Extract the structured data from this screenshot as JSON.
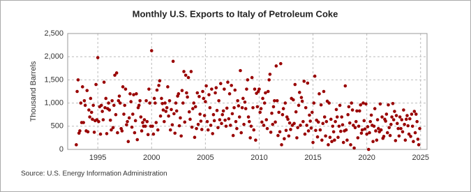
{
  "chart_data": {
    "type": "scatter",
    "title": "Monthly U.S. Exports to Italy of Petroleum Coke",
    "y_label": "Thousand Barrels",
    "source": "Source: U.S. Energy Information Administration",
    "xlim": [
      1992.2,
      2025.6
    ],
    "xticks": [
      1995,
      2000,
      2005,
      2010,
      2015,
      2020,
      2025
    ],
    "ylim": [
      0,
      2500
    ],
    "yticks": [
      0,
      500,
      {
        "value": 1000,
        "label": "1,000"
      },
      {
        "value": 1500,
        "label": "1,500"
      },
      {
        "value": 2000,
        "label": "2,000"
      },
      {
        "value": 2500,
        "label": "2,500"
      }
    ],
    "grid": true,
    "color": "#990000",
    "x": [
      1993,
      1993.08,
      1993.17,
      1993.25,
      1993.33,
      1993.42,
      1993.5,
      1993.58,
      1993.67,
      1993.75,
      1993.83,
      1993.92,
      1994,
      1994.08,
      1994.17,
      1994.25,
      1994.33,
      1994.42,
      1994.5,
      1994.58,
      1994.67,
      1994.75,
      1994.83,
      1994.92,
      1995,
      1995.08,
      1995.17,
      1995.25,
      1995.33,
      1995.42,
      1995.5,
      1995.58,
      1995.67,
      1995.75,
      1995.83,
      1995.92,
      1996,
      1996.08,
      1996.17,
      1996.25,
      1996.33,
      1996.42,
      1996.5,
      1996.58,
      1996.67,
      1996.75,
      1996.83,
      1996.92,
      1997,
      1997.08,
      1997.17,
      1997.25,
      1997.33,
      1997.42,
      1997.5,
      1997.58,
      1997.67,
      1997.75,
      1997.83,
      1997.92,
      1998,
      1998.08,
      1998.17,
      1998.25,
      1998.33,
      1998.42,
      1998.5,
      1998.58,
      1998.67,
      1998.75,
      1998.83,
      1998.92,
      1999,
      1999.08,
      1999.17,
      1999.25,
      1999.33,
      1999.42,
      1999.5,
      1999.58,
      1999.67,
      1999.75,
      1999.83,
      1999.92,
      2000,
      2000.08,
      2000.17,
      2000.25,
      2000.33,
      2000.42,
      2000.5,
      2000.58,
      2000.67,
      2000.75,
      2000.83,
      2000.92,
      2001,
      2001.08,
      2001.17,
      2001.25,
      2001.33,
      2001.42,
      2001.5,
      2001.58,
      2001.67,
      2001.75,
      2001.83,
      2001.92,
      2002,
      2002.08,
      2002.17,
      2002.25,
      2002.33,
      2002.42,
      2002.5,
      2002.58,
      2002.67,
      2002.75,
      2002.83,
      2002.92,
      2003,
      2003.08,
      2003.17,
      2003.25,
      2003.33,
      2003.42,
      2003.5,
      2003.58,
      2003.67,
      2003.75,
      2003.83,
      2003.92,
      2004,
      2004.08,
      2004.17,
      2004.25,
      2004.33,
      2004.42,
      2004.5,
      2004.58,
      2004.67,
      2004.75,
      2004.83,
      2004.92,
      2005,
      2005.08,
      2005.17,
      2005.25,
      2005.33,
      2005.42,
      2005.5,
      2005.58,
      2005.67,
      2005.75,
      2005.83,
      2005.92,
      2006,
      2006.08,
      2006.17,
      2006.25,
      2006.33,
      2006.42,
      2006.5,
      2006.58,
      2006.67,
      2006.75,
      2006.83,
      2006.92,
      2007,
      2007.08,
      2007.17,
      2007.25,
      2007.33,
      2007.42,
      2007.5,
      2007.58,
      2007.67,
      2007.75,
      2007.83,
      2007.92,
      2008,
      2008.08,
      2008.17,
      2008.25,
      2008.33,
      2008.42,
      2008.5,
      2008.58,
      2008.67,
      2008.75,
      2008.83,
      2008.92,
      2009,
      2009.08,
      2009.17,
      2009.25,
      2009.33,
      2009.42,
      2009.5,
      2009.58,
      2009.67,
      2009.75,
      2009.83,
      2009.92,
      2010,
      2010.08,
      2010.17,
      2010.25,
      2010.33,
      2010.42,
      2010.5,
      2010.58,
      2010.67,
      2010.75,
      2010.83,
      2010.92,
      2011,
      2011.08,
      2011.17,
      2011.25,
      2011.33,
      2011.42,
      2011.5,
      2011.58,
      2011.67,
      2011.75,
      2011.83,
      2011.92,
      2012,
      2012.08,
      2012.17,
      2012.25,
      2012.33,
      2012.42,
      2012.5,
      2012.58,
      2012.67,
      2012.75,
      2012.83,
      2012.92,
      2013,
      2013.08,
      2013.17,
      2013.25,
      2013.33,
      2013.42,
      2013.5,
      2013.58,
      2013.67,
      2013.75,
      2013.83,
      2013.92,
      2014,
      2014.08,
      2014.17,
      2014.25,
      2014.33,
      2014.42,
      2014.5,
      2014.58,
      2014.67,
      2014.75,
      2014.83,
      2014.92,
      2015,
      2015.08,
      2015.17,
      2015.25,
      2015.33,
      2015.42,
      2015.5,
      2015.58,
      2015.67,
      2015.75,
      2015.83,
      2015.92,
      2016,
      2016.08,
      2016.17,
      2016.25,
      2016.33,
      2016.42,
      2016.5,
      2016.58,
      2016.67,
      2016.75,
      2016.83,
      2016.92,
      2017,
      2017.08,
      2017.17,
      2017.25,
      2017.33,
      2017.42,
      2017.5,
      2017.58,
      2017.67,
      2017.75,
      2017.83,
      2017.92,
      2018,
      2018.08,
      2018.17,
      2018.25,
      2018.33,
      2018.42,
      2018.5,
      2018.58,
      2018.67,
      2018.75,
      2018.83,
      2018.92,
      2019,
      2019.08,
      2019.17,
      2019.25,
      2019.33,
      2019.42,
      2019.5,
      2019.58,
      2019.67,
      2019.75,
      2019.83,
      2019.92,
      2020,
      2020.08,
      2020.17,
      2020.25,
      2020.33,
      2020.42,
      2020.5,
      2020.58,
      2020.67,
      2020.75,
      2020.83,
      2020.92,
      2021,
      2021.08,
      2021.17,
      2021.25,
      2021.33,
      2021.42,
      2021.5,
      2021.58,
      2021.67,
      2021.75,
      2021.83,
      2021.92,
      2022,
      2022.08,
      2022.17,
      2022.25,
      2022.33,
      2022.42,
      2022.5,
      2022.58,
      2022.67,
      2022.75,
      2022.83,
      2022.92,
      2023,
      2023.08,
      2023.17,
      2023.25,
      2023.33,
      2023.42,
      2023.5,
      2023.58,
      2023.67,
      2023.75,
      2023.83,
      2023.92,
      2024,
      2024.08,
      2024.17,
      2024.25,
      2024.33,
      2024.42,
      2024.5,
      2024.58,
      2024.67,
      2024.75,
      2024.83,
      2024.92
    ],
    "values": [
      100,
      1250,
      1500,
      350,
      400,
      1000,
      580,
      1350,
      580,
      1050,
      950,
      400,
      1270,
      380,
      850,
      700,
      1100,
      800,
      650,
      950,
      370,
      620,
      1400,
      640,
      1980,
      600,
      920,
      330,
      950,
      820,
      640,
      1450,
      900,
      1100,
      340,
      880,
      1000,
      850,
      630,
      420,
      1050,
      470,
      950,
      1600,
      750,
      1650,
      360,
      1050,
      1150,
      1000,
      450,
      400,
      1350,
      760,
      950,
      1300,
      530,
      600,
      170,
      680,
      1200,
      1030,
      480,
      760,
      1180,
      360,
      620,
      1200,
      210,
      900,
      950,
      1050,
      700,
      400,
      580,
      500,
      640,
      500,
      1050,
      600,
      320,
      1300,
      1000,
      500,
      2130,
      500,
      330,
      1100,
      1000,
      580,
      1280,
      420,
      1380,
      1480,
      720,
      1100,
      990,
      850,
      600,
      1000,
      820,
      900,
      1350,
      720,
      1050,
      420,
      860,
      530,
      1900,
      770,
      350,
      1000,
      830,
      1150,
      1200,
      510,
      680,
      290,
      1270,
      1000,
      1680,
      590,
      1600,
      1220,
      1130,
      1550,
      810,
      650,
      1680,
      480,
      880,
      1000,
      260,
      920,
      450,
      1220,
      540,
      1140,
      760,
      610,
      430,
      1250,
      1100,
      730,
      1030,
      1370,
      600,
      420,
      1180,
      900,
      520,
      1300,
      340,
      750,
      620,
      1220,
      1330,
      840,
      470,
      1050,
      640,
      1420,
      560,
      750,
      830,
      1300,
      630,
      500,
      890,
      1450,
      660,
      1200,
      520,
      1380,
      770,
      300,
      900,
      1280,
      600,
      450,
      1050,
      940,
      700,
      1700,
      360,
      900,
      1100,
      540,
      1020,
      880,
      1300,
      1500,
      700,
      600,
      250,
      500,
      1550,
      900,
      420,
      1300,
      200,
      1210,
      920,
      1250,
      1300,
      800,
      880,
      590,
      1100,
      520,
      1000,
      1220,
      640,
      450,
      1250,
      1500,
      1620,
      370,
      780,
      540,
      920,
      1050,
      590,
      1800,
      1050,
      300,
      800,
      380,
      1850,
      100,
      750,
      880,
      230,
      1000,
      410,
      700,
      650,
      290,
      570,
      430,
      1100,
      520,
      1070,
      560,
      1400,
      810,
      250,
      470,
      950,
      1230,
      520,
      1120,
      1040,
      600,
      1470,
      330,
      900,
      520,
      1430,
      400,
      740,
      610,
      460,
      800,
      150,
      1000,
      1580,
      410,
      630,
      270,
      590,
      1200,
      420,
      960,
      200,
      560,
      1250,
      700,
      290,
      600,
      1040,
      100,
      1000,
      260,
      650,
      170,
      500,
      380,
      200,
      600,
      860,
      700,
      260,
      500,
      950,
      390,
      700,
      530,
      150,
      400,
      1370,
      420,
      200,
      750,
      920,
      570,
      100,
      1000,
      850,
      520,
      30,
      470,
      600,
      830,
      250,
      500,
      830,
      960,
      350,
      420,
      1000,
      620,
      440,
      980,
      330,
      490,
      0,
      360,
      600,
      740,
      520,
      170,
      500,
      880,
      400,
      200,
      640,
      450,
      380,
      980,
      420,
      700,
      240,
      280,
      650,
      610,
      760,
      360,
      960,
      470,
      300,
      540,
      700,
      990,
      640,
      820,
      190,
      730,
      560,
      450,
      290,
      700,
      450,
      640,
      380,
      850,
      540,
      200,
      650,
      730,
      510,
      330,
      660,
      280,
      760,
      500,
      170,
      820,
      360,
      760,
      600,
      220,
      100,
      450
    ]
  }
}
